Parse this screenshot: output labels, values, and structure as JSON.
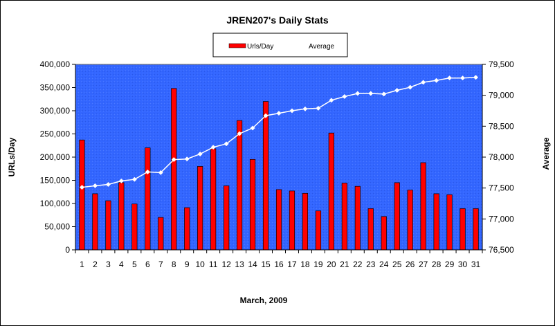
{
  "chart_data": {
    "type": "bar",
    "title": "JREN207's Daily Stats",
    "xlabel": "March, 2009",
    "ylabel": "URLs/Day",
    "y2label": "Average",
    "categories": [
      "1",
      "2",
      "3",
      "4",
      "5",
      "6",
      "7",
      "8",
      "9",
      "10",
      "11",
      "12",
      "13",
      "14",
      "15",
      "16",
      "17",
      "18",
      "19",
      "20",
      "21",
      "22",
      "23",
      "24",
      "25",
      "26",
      "27",
      "28",
      "29",
      "30",
      "31"
    ],
    "series": [
      {
        "name": "Urls/Day",
        "type": "bar",
        "axis": "left",
        "color": "#ff0000",
        "values": [
          237000,
          121000,
          106000,
          145000,
          99000,
          220000,
          70000,
          348000,
          91000,
          180000,
          218000,
          138000,
          279000,
          195000,
          320000,
          130000,
          127000,
          122000,
          84000,
          252000,
          144000,
          137000,
          89000,
          72000,
          145000,
          129000,
          188000,
          121000,
          119000,
          89000,
          89000
        ]
      },
      {
        "name": "Average",
        "type": "line",
        "axis": "right",
        "color": "#ffffff",
        "values": [
          77512,
          77537,
          77558,
          77615,
          77640,
          77760,
          77750,
          77960,
          77970,
          78050,
          78160,
          78215,
          78380,
          78470,
          78670,
          78710,
          78750,
          78780,
          78790,
          78920,
          78980,
          79030,
          79030,
          79020,
          79080,
          79130,
          79210,
          79240,
          79280,
          79280,
          79290
        ]
      }
    ],
    "ylim": [
      0,
      400000
    ],
    "y_ticks": [
      "0",
      "50,000",
      "100,000",
      "150,000",
      "200,000",
      "250,000",
      "300,000",
      "350,000",
      "400,000"
    ],
    "y2lim": [
      76500,
      79500
    ],
    "y2_ticks": [
      "76,500",
      "77,000",
      "77,500",
      "78,000",
      "78,500",
      "79,000",
      "79,500"
    ],
    "plot_background": "#3366ff",
    "legend_position": "top-center",
    "grid": false
  }
}
